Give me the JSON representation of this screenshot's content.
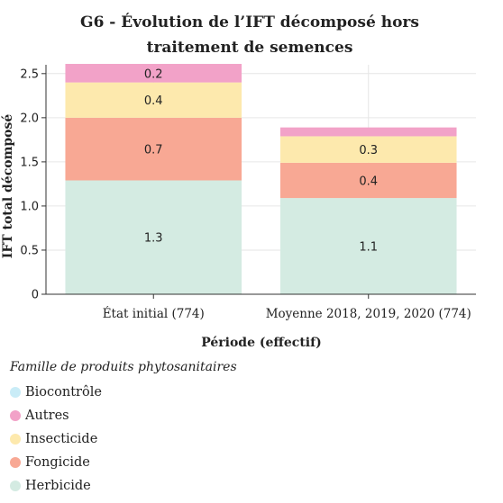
{
  "chart_data": {
    "type": "bar",
    "stacked": true,
    "title_lines": [
      "G6 - Évolution de l’IFT décomposé hors",
      "traitement de semences"
    ],
    "xlabel": "Période (effectif)",
    "ylabel": "IFT total décomposé",
    "categories": [
      "État initial (774)",
      "Moyenne 2018, 2019, 2020 (774)"
    ],
    "ylim": [
      0,
      2.6
    ],
    "yticks": [
      0,
      0.5,
      1.0,
      1.5,
      2.0,
      2.5
    ],
    "ytick_labels": [
      "0",
      "0.5",
      "1.0",
      "1.5",
      "2.0",
      "2.5"
    ],
    "grid": true,
    "legend_title": "Famille de produits phytosanitaires",
    "legend_placement": "bottom",
    "series": [
      {
        "name": "Herbicide",
        "color": "#d4ebe2",
        "values": [
          1.29,
          1.09
        ],
        "labels": [
          "1.3",
          "1.1"
        ]
      },
      {
        "name": "Fongicide",
        "color": "#f8a894",
        "values": [
          0.71,
          0.4
        ],
        "labels": [
          "0.7",
          "0.4"
        ]
      },
      {
        "name": "Insecticide",
        "color": "#fde9ad",
        "values": [
          0.4,
          0.3
        ],
        "labels": [
          "0.4",
          "0.3"
        ]
      },
      {
        "name": "Autres",
        "color": "#f2a2c8",
        "values": [
          0.21,
          0.1
        ],
        "labels": [
          "0.2",
          ""
        ]
      },
      {
        "name": "Biocontrôle",
        "color": "#c9ecf7",
        "values": [
          0,
          0
        ],
        "labels": [
          "",
          ""
        ]
      }
    ],
    "legend_order": [
      "Biocontrôle",
      "Autres",
      "Insecticide",
      "Fongicide",
      "Herbicide"
    ]
  }
}
